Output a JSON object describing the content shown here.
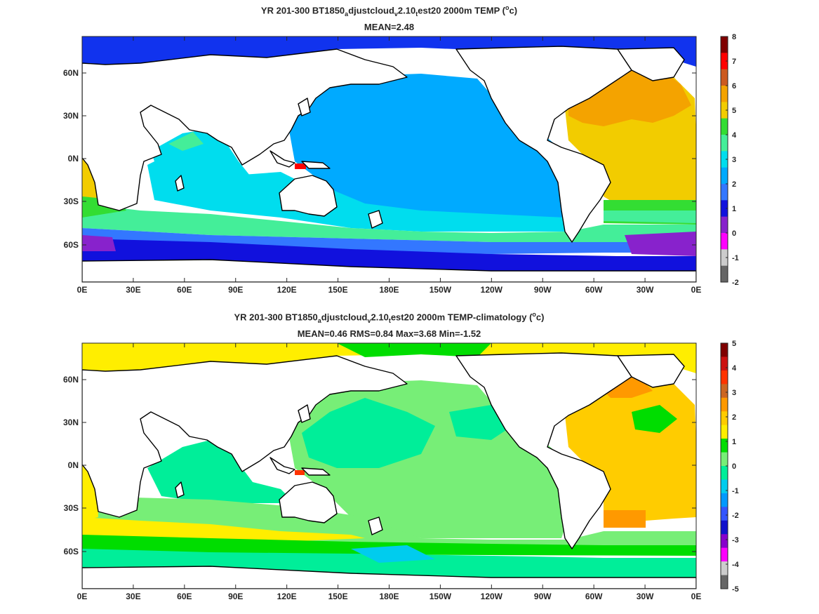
{
  "maps": [
    {
      "id": "top",
      "title_parts": [
        "YR 201-300 BT1850",
        "a",
        "djustcloud",
        "v",
        "2.10",
        "t",
        "est20 2000m TEMP (",
        "o",
        "c)"
      ],
      "subtitle": "MEAN=2.48",
      "colorbar_labels": [
        "8",
        "7",
        "6",
        "5",
        "4",
        "3",
        "2",
        "1",
        "0",
        "-1",
        "-2"
      ],
      "colorbar_colors": [
        "#7f0000",
        "#ff0000",
        "#cc5a1f",
        "#f4a300",
        "#f2cc00",
        "#33dd33",
        "#44ee99",
        "#00ddee",
        "#00aaff",
        "#3377ff",
        "#1111dd",
        "#8822cc",
        "#ff00ff",
        "#cccccc",
        "#666666"
      ]
    },
    {
      "id": "bottom",
      "title_parts": [
        "YR 201-300 BT1850",
        "a",
        "djustcloud",
        "v",
        "2.10",
        "t",
        "est20 2000m TEMP-climatology (",
        "o",
        "c)"
      ],
      "subtitle": "MEAN=0.46   RMS=0.84   Max=3.68   Min=-1.52",
      "colorbar_labels": [
        "5",
        "4",
        "3",
        "2",
        "1",
        "0",
        "-1",
        "-2",
        "-3",
        "-4",
        "-5"
      ],
      "colorbar_colors": [
        "#7f0000",
        "#cc1111",
        "#ff3300",
        "#cc6622",
        "#ff9900",
        "#ffcc00",
        "#ffee00",
        "#00dd00",
        "#77ee77",
        "#00ee99",
        "#00ccee",
        "#0099ff",
        "#3355ff",
        "#1111cc",
        "#8800cc",
        "#ff00ff",
        "#cccccc",
        "#666666"
      ]
    }
  ],
  "x_ticks": [
    "0E",
    "30E",
    "60E",
    "90E",
    "120E",
    "150E",
    "180E",
    "150W",
    "120W",
    "90W",
    "60W",
    "30W",
    "0E"
  ],
  "y_ticks": [
    "60N",
    "30N",
    "0N",
    "30S",
    "60S"
  ]
}
